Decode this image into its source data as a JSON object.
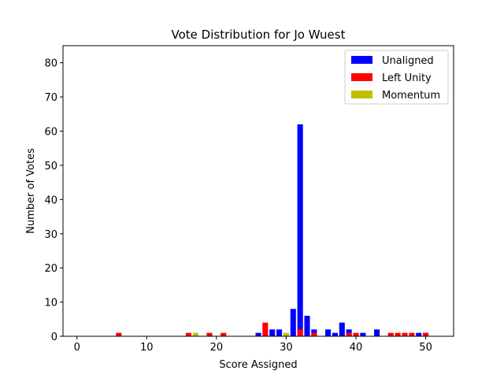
{
  "chart_data": {
    "type": "bar",
    "title": "Vote Distribution for Jo Wuest",
    "xlabel": "Score Assigned",
    "ylabel": "Number of Votes",
    "xlim": [
      -2,
      54
    ],
    "ylim": [
      0,
      85
    ],
    "xticks": [
      0,
      10,
      20,
      30,
      40,
      50
    ],
    "yticks": [
      0,
      10,
      20,
      30,
      40,
      50,
      60,
      70,
      80
    ],
    "grid": false,
    "legend_position": "top-right",
    "series": [
      {
        "name": "Unaligned",
        "color": "#0000ff",
        "points": [
          {
            "x": 26,
            "y": 1
          },
          {
            "x": 28,
            "y": 2
          },
          {
            "x": 29,
            "y": 2
          },
          {
            "x": 31,
            "y": 8
          },
          {
            "x": 32,
            "y": 62
          },
          {
            "x": 33,
            "y": 6
          },
          {
            "x": 34,
            "y": 2
          },
          {
            "x": 36,
            "y": 2
          },
          {
            "x": 37,
            "y": 1
          },
          {
            "x": 38,
            "y": 4
          },
          {
            "x": 39,
            "y": 2
          },
          {
            "x": 41,
            "y": 1
          },
          {
            "x": 43,
            "y": 2
          },
          {
            "x": 49,
            "y": 1
          },
          {
            "x": 50,
            "y": 1
          }
        ]
      },
      {
        "name": "Left Unity",
        "color": "#ff0000",
        "points": [
          {
            "x": 6,
            "y": 1
          },
          {
            "x": 16,
            "y": 1
          },
          {
            "x": 19,
            "y": 1
          },
          {
            "x": 21,
            "y": 1
          },
          {
            "x": 27,
            "y": 4
          },
          {
            "x": 32,
            "y": 2
          },
          {
            "x": 34,
            "y": 1
          },
          {
            "x": 39,
            "y": 1
          },
          {
            "x": 40,
            "y": 1
          },
          {
            "x": 45,
            "y": 1
          },
          {
            "x": 46,
            "y": 1
          },
          {
            "x": 47,
            "y": 1
          },
          {
            "x": 48,
            "y": 1
          },
          {
            "x": 50,
            "y": 1
          }
        ]
      },
      {
        "name": "Momentum",
        "color": "#bfbf00",
        "points": [
          {
            "x": 17,
            "y": 1
          },
          {
            "x": 30,
            "y": 1
          }
        ]
      }
    ]
  }
}
